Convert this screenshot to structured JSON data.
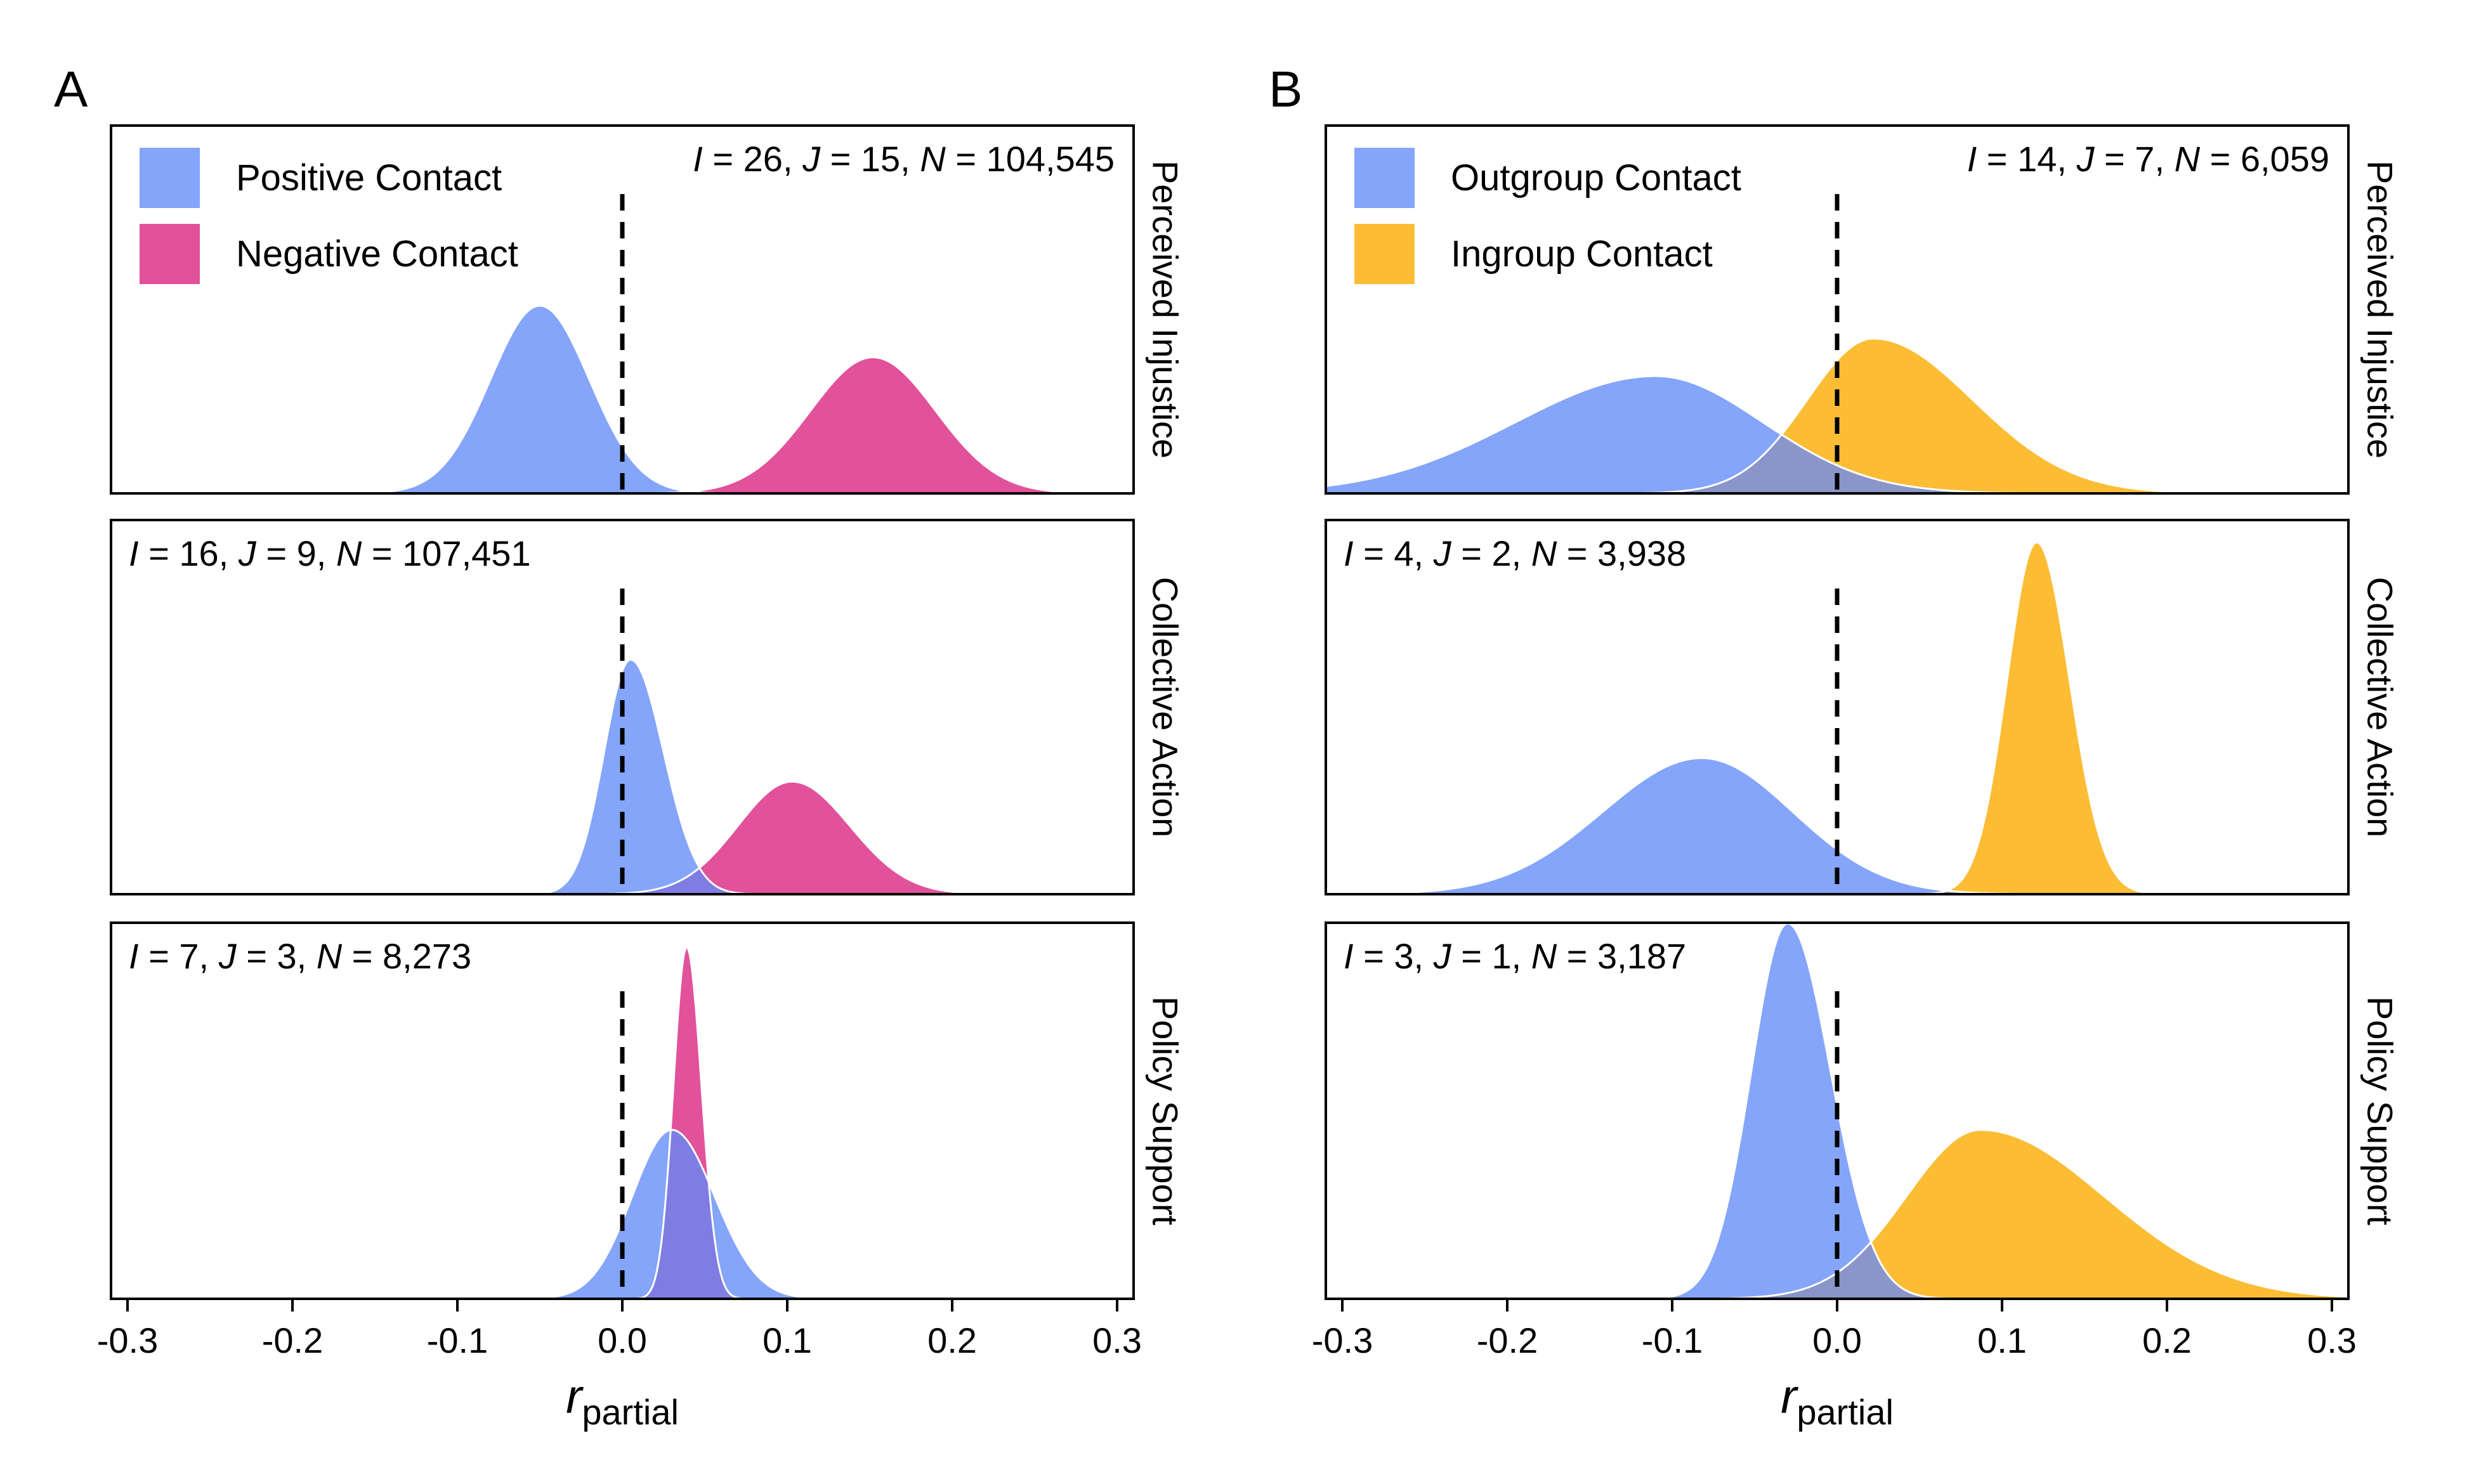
{
  "panel_labels": [
    "A",
    "B"
  ],
  "chart_data": [
    {
      "type": "area",
      "panel": "A",
      "xlabel_main": "r",
      "xlabel_sub": "partial",
      "xlim": [
        -0.31,
        0.31
      ],
      "xticks": [
        -0.3,
        -0.2,
        -0.1,
        0.0,
        0.1,
        0.2,
        0.3
      ],
      "xtick_labels": [
        "-0.3",
        "-0.2",
        "-0.1",
        "0.0",
        "0.1",
        "0.2",
        "0.3"
      ],
      "reference_line_x": 0.0,
      "legend": [
        {
          "name": "Positive Contact",
          "color": "#85a5fa"
        },
        {
          "name": "Negative Contact",
          "color": "#e1529a"
        }
      ],
      "overlap_color": "#7f7de2",
      "facets": [
        {
          "label": "Perceived Injustice",
          "stats": {
            "I": "26",
            "J": "15",
            "N": "104,545"
          },
          "series": [
            {
              "name": "Positive Contact",
              "mode": -0.05,
              "sd_left": 0.03,
              "sd_right": 0.03,
              "peak": 0.8
            },
            {
              "name": "Negative Contact",
              "mode": 0.152,
              "sd_left": 0.038,
              "sd_right": 0.038,
              "peak": 0.58
            }
          ]
        },
        {
          "label": "Collective Action",
          "stats": {
            "I": "16",
            "J": "9",
            "N": "107,451"
          },
          "series": [
            {
              "name": "Positive Contact",
              "mode": 0.005,
              "sd_left": 0.016,
              "sd_right": 0.02,
              "peak": 1.0
            },
            {
              "name": "Negative Contact",
              "mode": 0.103,
              "sd_left": 0.033,
              "sd_right": 0.035,
              "peak": 0.48
            }
          ]
        },
        {
          "label": "Policy Support",
          "stats": {
            "I": "7",
            "J": "3",
            "N": "8,273"
          },
          "series": [
            {
              "name": "Positive Contact",
              "mode": 0.03,
              "sd_left": 0.024,
              "sd_right": 0.026,
              "peak": 0.72
            },
            {
              "name": "Negative Contact",
              "mode": 0.039,
              "sd_left": 0.008,
              "sd_right": 0.009,
              "peak": 1.5
            }
          ]
        }
      ]
    },
    {
      "type": "area",
      "panel": "B",
      "xlabel_main": "r",
      "xlabel_sub": "partial",
      "xlim": [
        -0.31,
        0.31
      ],
      "xticks": [
        -0.3,
        -0.2,
        -0.1,
        0.0,
        0.1,
        0.2,
        0.3
      ],
      "xtick_labels": [
        "-0.3",
        "-0.2",
        "-0.1",
        "0.0",
        "0.1",
        "0.2",
        "0.3"
      ],
      "reference_line_x": 0.0,
      "legend": [
        {
          "name": "Outgroup Contact",
          "color": "#85a5fa"
        },
        {
          "name": "Ingroup Contact",
          "color": "#fcbd35"
        }
      ],
      "overlap_color": "#8a96c9",
      "facets": [
        {
          "label": "Perceived Injustice",
          "stats": {
            "I": "14",
            "J": "7",
            "N": "6,059"
          },
          "series": [
            {
              "name": "Outgroup Contact",
              "mode": -0.11,
              "sd_left": 0.085,
              "sd_right": 0.065,
              "peak": 0.5
            },
            {
              "name": "Ingroup Contact",
              "mode": 0.022,
              "sd_left": 0.04,
              "sd_right": 0.06,
              "peak": 0.66
            }
          ]
        },
        {
          "label": "Collective Action",
          "stats": {
            "I": "4",
            "J": "2",
            "N": "3,938"
          },
          "series": [
            {
              "name": "Outgroup Contact",
              "mode": -0.082,
              "sd_left": 0.06,
              "sd_right": 0.055,
              "peak": 0.58
            },
            {
              "name": "Ingroup Contact",
              "mode": 0.121,
              "sd_left": 0.018,
              "sd_right": 0.02,
              "peak": 1.5
            }
          ]
        },
        {
          "label": "Policy Support",
          "stats": {
            "I": "3",
            "J": "1",
            "N": "3,187"
          },
          "series": [
            {
              "name": "Outgroup Contact",
              "mode": -0.03,
              "sd_left": 0.022,
              "sd_right": 0.026,
              "peak": 1.6
            },
            {
              "name": "Ingroup Contact",
              "mode": 0.087,
              "sd_left": 0.045,
              "sd_right": 0.075,
              "peak": 0.72
            }
          ]
        }
      ]
    }
  ]
}
